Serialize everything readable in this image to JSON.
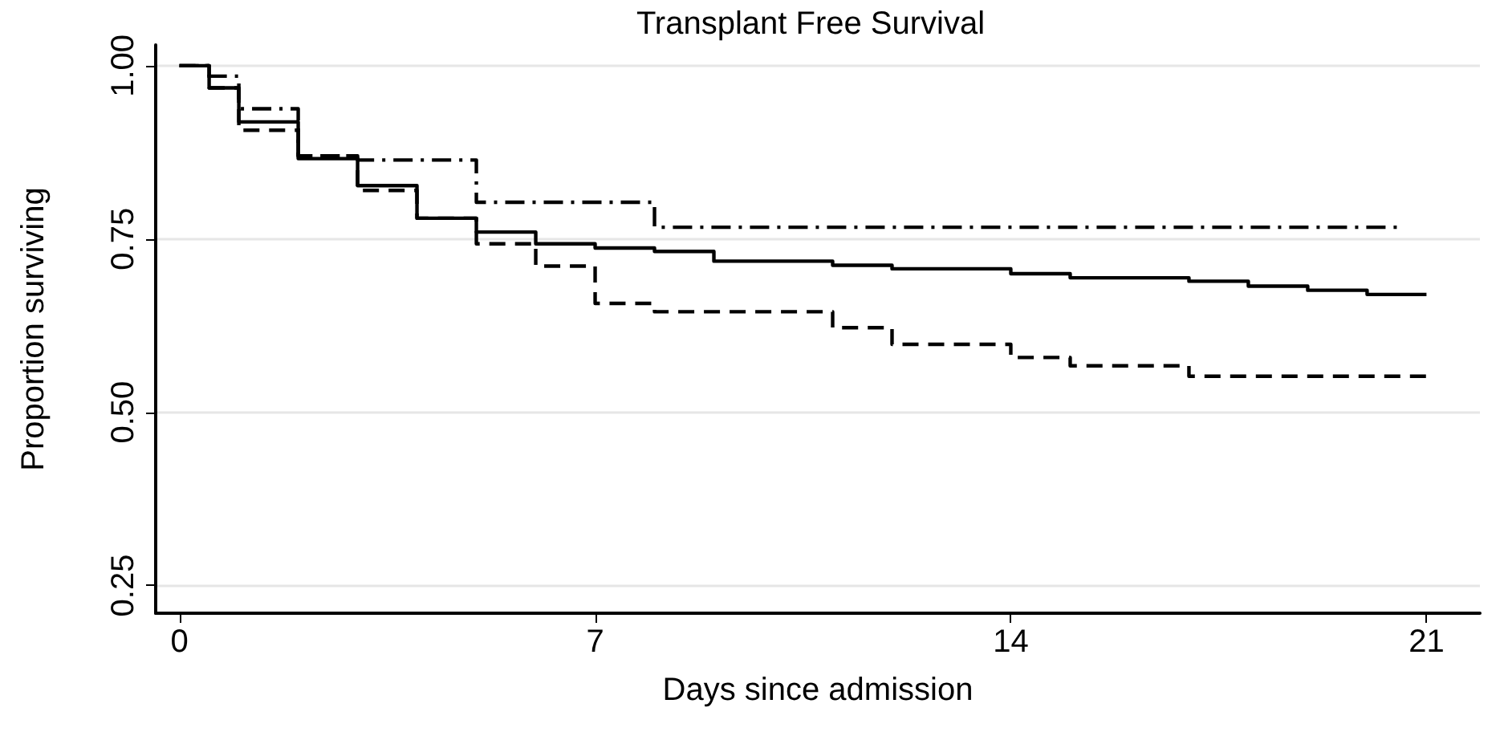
{
  "chart_data": {
    "type": "step",
    "title": "Transplant Free Survival",
    "xlabel": "Days since admission",
    "ylabel": "Proportion surviving",
    "xlim": [
      -0.4,
      21.9
    ],
    "xticks": [
      0,
      7,
      14,
      21
    ],
    "ylim": [
      0.21,
      1.03
    ],
    "yticks": [
      0.25,
      {
        "value": 0.5,
        "label": "0.50"
      },
      0.75,
      {
        "value": 1,
        "label": "1.00"
      }
    ],
    "grid": "y",
    "marker": "none",
    "series": [
      {
        "color": "#000000",
        "line_style": "solid",
        "x": [
          0,
          0.5,
          1,
          2,
          3,
          4,
          5,
          6,
          7,
          8,
          9,
          11,
          12,
          14,
          15,
          17,
          18,
          19,
          20,
          21
        ],
        "values": [
          1,
          0.968,
          0.919,
          0.866,
          0.827,
          0.78,
          0.76,
          0.743,
          0.737,
          0.732,
          0.718,
          0.712,
          0.707,
          0.7,
          0.694,
          0.689,
          0.682,
          0.676,
          0.67,
          0.67
        ]
      },
      {
        "color": "#000000",
        "line_style": "dashed",
        "x": [
          0,
          0.5,
          1,
          2,
          3,
          4,
          5,
          6,
          7,
          8,
          11,
          12,
          14,
          15,
          17,
          21
        ],
        "values": [
          1,
          0.968,
          0.907,
          0.87,
          0.82,
          0.78,
          0.743,
          0.711,
          0.657,
          0.645,
          0.622,
          0.598,
          0.579,
          0.567,
          0.552,
          0.552
        ]
      },
      {
        "color": "#000000",
        "line_style": "dashdot",
        "x": [
          0,
          0.5,
          1,
          2,
          3,
          5,
          8,
          20.5
        ],
        "values": [
          1,
          0.985,
          0.938,
          0.87,
          0.864,
          0.803,
          0.767,
          0.767
        ]
      }
    ]
  }
}
